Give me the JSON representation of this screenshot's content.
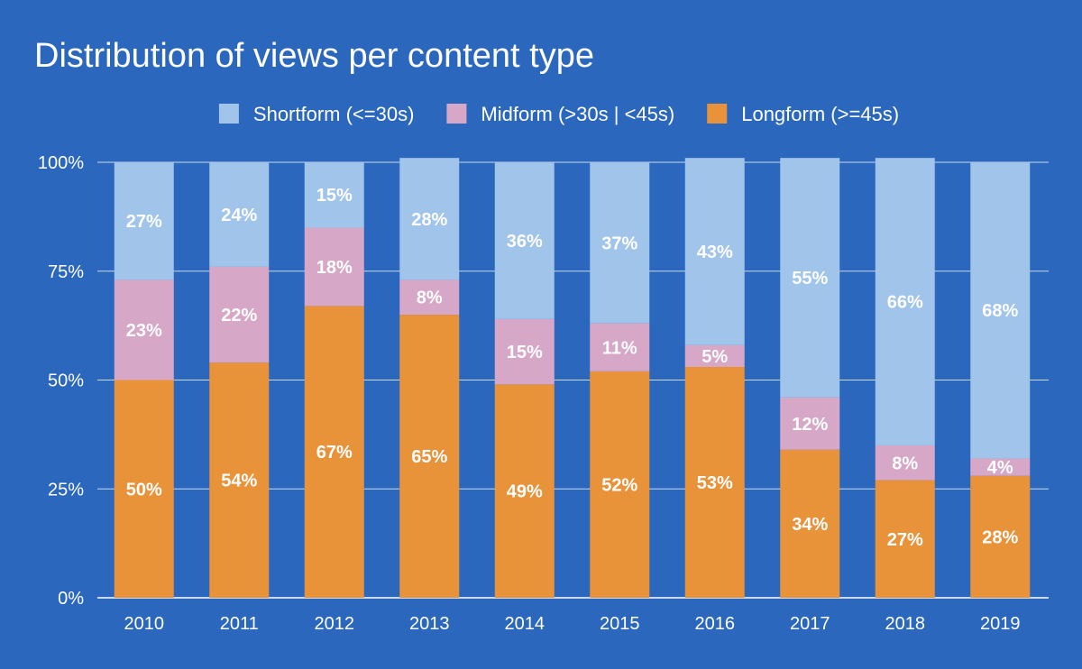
{
  "chart_data": {
    "type": "bar",
    "stacked": true,
    "title": "Distribution of views per content type",
    "xlabel": "",
    "ylabel": "",
    "categories": [
      "2010",
      "2011",
      "2012",
      "2013",
      "2014",
      "2015",
      "2016",
      "2017",
      "2018",
      "2019"
    ],
    "series": [
      {
        "name": "Longform (>=45s)",
        "color": "#e8923a",
        "values": [
          50,
          54,
          67,
          65,
          49,
          52,
          53,
          34,
          27,
          28
        ],
        "labels": [
          "50%",
          "54%",
          "67%",
          "65%",
          "49%",
          "52%",
          "53%",
          "34%",
          "27%",
          "28%"
        ]
      },
      {
        "name": "Midform (>30s | <45s)",
        "color": "#d6a7c6",
        "values": [
          23,
          22,
          18,
          8,
          15,
          11,
          5,
          12,
          8,
          4
        ],
        "labels": [
          "23%",
          "22%",
          "18%",
          "8%",
          "15%",
          "11%",
          "5%",
          "12%",
          "8%",
          "4%"
        ]
      },
      {
        "name": "Shortform (<=30s)",
        "color": "#a0c4ea",
        "values": [
          27,
          24,
          15,
          28,
          36,
          37,
          43,
          55,
          66,
          68
        ],
        "labels": [
          "27%",
          "24%",
          "15%",
          "28%",
          "36%",
          "37%",
          "43%",
          "55%",
          "66%",
          "68%"
        ]
      }
    ],
    "legend_order": [
      "Shortform (<=30s)",
      "Midform (>30s | <45s)",
      "Longform (>=45s)"
    ],
    "ylim": [
      0,
      100
    ],
    "yticks": [
      0,
      25,
      50,
      75,
      100
    ],
    "ytick_labels": [
      "0%",
      "25%",
      "50%",
      "75%",
      "100%"
    ],
    "grid": true,
    "legend_position": "top-center",
    "background": "#2a67bd",
    "text_color": "#ffffff",
    "grid_color": "#c9d9ef"
  }
}
